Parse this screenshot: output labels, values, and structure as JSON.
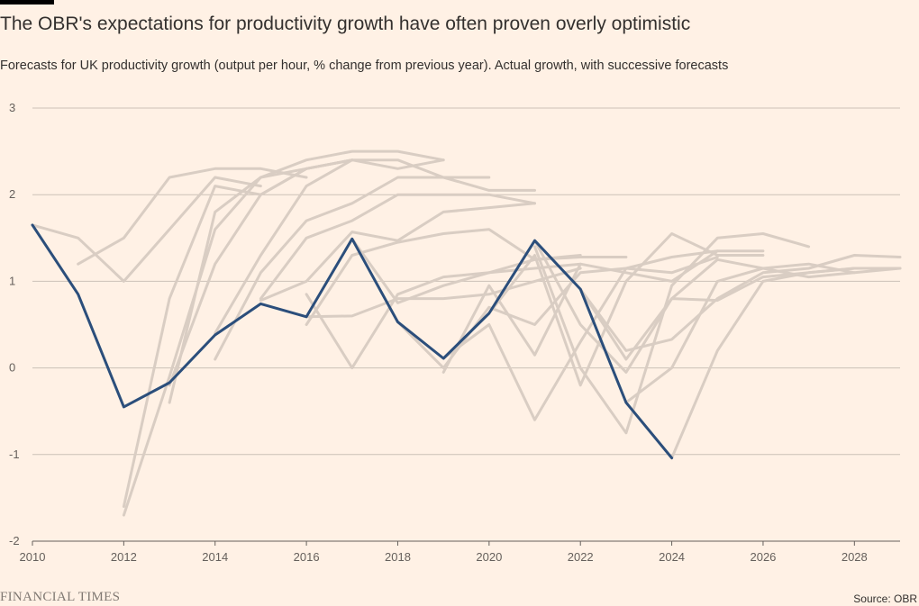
{
  "header": {
    "title": "The OBR's expectations for productivity growth have often proven overly optimistic",
    "subtitle": "Forecasts for UK productivity growth (output per hour, % change from previous year). Actual growth, with successive forecasts"
  },
  "footer": {
    "brand": "FINANCIAL TIMES",
    "source": "Source: OBR"
  },
  "colors": {
    "background": "#fff1e5",
    "actual": "#2b4e7b",
    "forecast": "#d9cdc3",
    "grid": "#ccc1b7"
  },
  "chart_data": {
    "type": "line",
    "xlim": [
      2010,
      2029
    ],
    "ylim": [
      -2,
      3
    ],
    "x_ticks": [
      2010,
      2012,
      2014,
      2016,
      2018,
      2020,
      2022,
      2024,
      2026,
      2028
    ],
    "y_ticks": [
      3,
      2,
      1,
      0,
      -1,
      -2
    ],
    "grid": true,
    "actual": {
      "x": [
        2010,
        2011,
        2012,
        2013,
        2014,
        2015,
        2016,
        2017,
        2018,
        2019,
        2020,
        2021,
        2022,
        2023,
        2024
      ],
      "y": [
        1.65,
        0.85,
        -0.45,
        -0.17,
        0.38,
        0.74,
        0.59,
        1.49,
        0.53,
        0.11,
        0.63,
        1.47,
        0.91,
        -0.4,
        -1.04
      ]
    },
    "forecasts": [
      {
        "x": [
          2010,
          2011,
          2012,
          2013,
          2014,
          2015
        ],
        "y": [
          1.65,
          1.5,
          1.0,
          1.6,
          2.2,
          2.1
        ]
      },
      {
        "x": [
          2011,
          2012,
          2013,
          2014,
          2015,
          2016
        ],
        "y": [
          1.2,
          1.5,
          2.2,
          2.3,
          2.3,
          2.2
        ]
      },
      {
        "x": [
          2012,
          2013,
          2014,
          2015,
          2016,
          2017
        ],
        "y": [
          -1.6,
          0.8,
          2.1,
          2.0,
          2.3,
          2.4
        ]
      },
      {
        "x": [
          2012,
          2013,
          2014,
          2015,
          2016,
          2017
        ],
        "y": [
          -1.7,
          -0.1,
          1.6,
          2.2,
          2.3,
          2.4
        ]
      },
      {
        "x": [
          2013,
          2014,
          2015,
          2016,
          2017,
          2018,
          2019
        ],
        "y": [
          -0.4,
          1.8,
          2.2,
          2.4,
          2.5,
          2.5,
          2.4
        ]
      },
      {
        "x": [
          2013,
          2014,
          2015,
          2016,
          2017,
          2018,
          2019
        ],
        "y": [
          -0.2,
          1.2,
          2.0,
          2.3,
          2.4,
          2.3,
          2.4
        ]
      },
      {
        "x": [
          2014,
          2015,
          2016,
          2017,
          2018,
          2019,
          2020
        ],
        "y": [
          0.4,
          1.3,
          2.1,
          2.4,
          2.4,
          2.2,
          2.2
        ]
      },
      {
        "x": [
          2014,
          2015,
          2016,
          2017,
          2018,
          2019,
          2020,
          2021
        ],
        "y": [
          0.1,
          1.1,
          1.7,
          1.9,
          2.2,
          2.2,
          2.05,
          2.05
        ]
      },
      {
        "x": [
          2015,
          2016,
          2017,
          2018,
          2019,
          2020,
          2021
        ],
        "y": [
          0.8,
          1.5,
          1.7,
          2.0,
          2.0,
          2.0,
          1.9
        ]
      },
      {
        "x": [
          2015,
          2016,
          2017,
          2018,
          2019,
          2020,
          2021
        ],
        "y": [
          0.78,
          1.0,
          1.57,
          1.47,
          1.8,
          1.85,
          1.9
        ]
      },
      {
        "x": [
          2016,
          2017,
          2018,
          2019,
          2020,
          2021,
          2022
        ],
        "y": [
          0.5,
          1.3,
          1.45,
          1.55,
          1.6,
          1.25,
          1.3
        ]
      },
      {
        "x": [
          2016,
          2017,
          2018,
          2019,
          2020,
          2021,
          2022
        ],
        "y": [
          0.59,
          0.6,
          0.8,
          0.8,
          0.85,
          1.0,
          1.15
        ]
      },
      {
        "x": [
          2016,
          2017,
          2018,
          2019,
          2020,
          2021,
          2022
        ],
        "y": [
          0.85,
          0.0,
          0.85,
          1.05,
          1.1,
          1.15,
          1.2
        ]
      },
      {
        "x": [
          2017,
          2018,
          2019,
          2020,
          2021,
          2022,
          2023
        ],
        "y": [
          1.49,
          0.75,
          0.95,
          1.1,
          1.25,
          1.28,
          1.28
        ]
      },
      {
        "x": [
          2018,
          2019,
          2020,
          2021,
          2022,
          2023,
          2024,
          2025
        ],
        "y": [
          0.53,
          0.0,
          0.7,
          0.5,
          1.1,
          1.15,
          1.1,
          1.28
        ]
      },
      {
        "x": [
          2019,
          2020,
          2021,
          2022,
          2023,
          2024,
          2025
        ],
        "y": [
          0.11,
          0.5,
          -0.6,
          0.3,
          1.15,
          1.28,
          1.35
        ]
      },
      {
        "x": [
          2019,
          2020,
          2021,
          2022,
          2023,
          2024,
          2025,
          2026
        ],
        "y": [
          -0.05,
          0.95,
          0.15,
          1.2,
          1.1,
          1.0,
          1.35,
          1.35
        ]
      },
      {
        "x": [
          2020,
          2021,
          2022,
          2023,
          2024,
          2025,
          2026
        ],
        "y": [
          0.63,
          1.3,
          -0.2,
          1.0,
          1.55,
          1.3,
          1.3
        ]
      },
      {
        "x": [
          2021,
          2022,
          2023,
          2024,
          2025,
          2026,
          2027
        ],
        "y": [
          1.4,
          0.0,
          -0.75,
          0.95,
          1.5,
          1.55,
          1.4
        ]
      },
      {
        "x": [
          2021,
          2022,
          2023,
          2024,
          2025,
          2026,
          2027,
          2028
        ],
        "y": [
          1.47,
          0.5,
          -0.05,
          0.8,
          1.25,
          1.15,
          1.05,
          1.1
        ]
      },
      {
        "x": [
          2022,
          2023,
          2024,
          2025,
          2026,
          2027,
          2028,
          2029
        ],
        "y": [
          0.91,
          0.2,
          0.33,
          0.8,
          1.1,
          1.15,
          1.3,
          1.28
        ]
      },
      {
        "x": [
          2022,
          2023,
          2024,
          2025,
          2026,
          2027,
          2028
        ],
        "y": [
          0.91,
          0.1,
          0.8,
          0.78,
          1.05,
          1.1,
          1.15
        ]
      },
      {
        "x": [
          2023,
          2024,
          2025,
          2026,
          2027,
          2028,
          2029
        ],
        "y": [
          -0.4,
          0.0,
          1.0,
          1.15,
          1.2,
          1.1,
          1.15
        ]
      },
      {
        "x": [
          2023,
          2024,
          2025,
          2026,
          2027,
          2028,
          2029
        ],
        "y": [
          -0.4,
          -1.04,
          0.2,
          1.0,
          1.1,
          1.15,
          1.15
        ]
      }
    ]
  }
}
